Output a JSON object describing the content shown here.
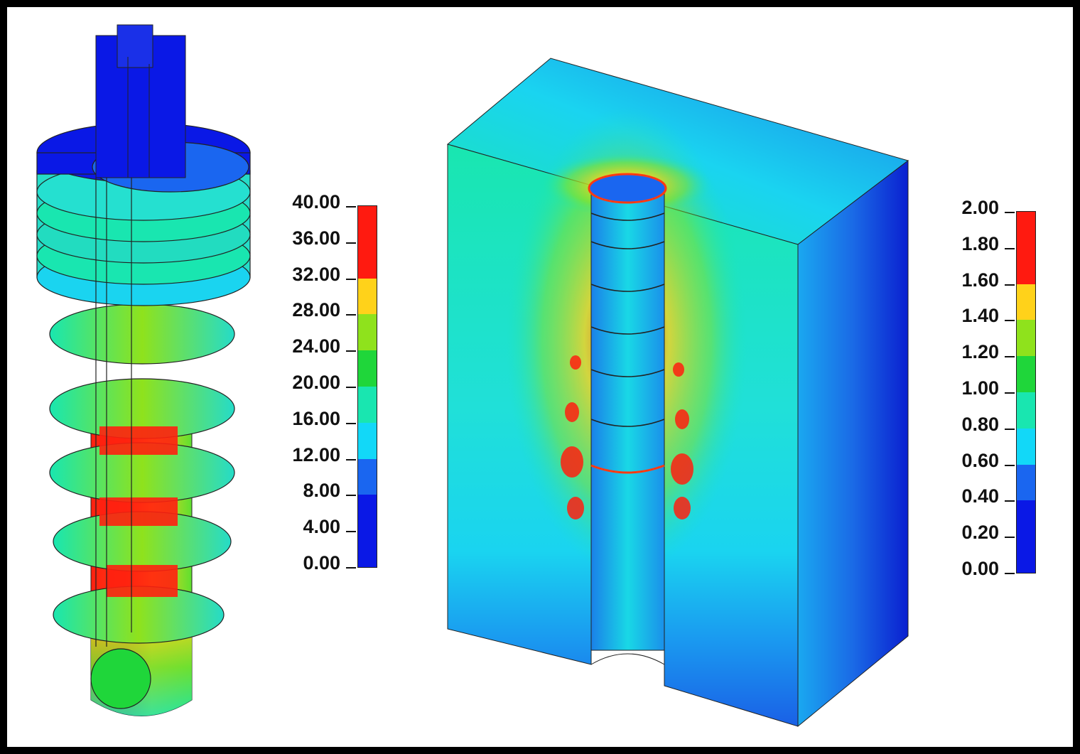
{
  "colors": {
    "frame": "#000000",
    "background": "#ffffff",
    "bands": [
      "#0a18e6",
      "#1a66f0",
      "#12d8f8",
      "#19e6b0",
      "#1fd63a",
      "#8fe21c",
      "#ffd21a",
      "#ff7a10",
      "#ff1a10"
    ]
  },
  "left_legend": {
    "labels": [
      "40.00",
      "36.00",
      "32.00",
      "28.00",
      "24.00",
      "20.00",
      "16.00",
      "12.00",
      "8.00",
      "4.00",
      "0.00"
    ]
  },
  "right_legend": {
    "labels": [
      "2.00",
      "1.80",
      "1.60",
      "1.40",
      "1.20",
      "1.00",
      "0.80",
      "0.60",
      "0.40",
      "0.20",
      "0.00"
    ]
  }
}
